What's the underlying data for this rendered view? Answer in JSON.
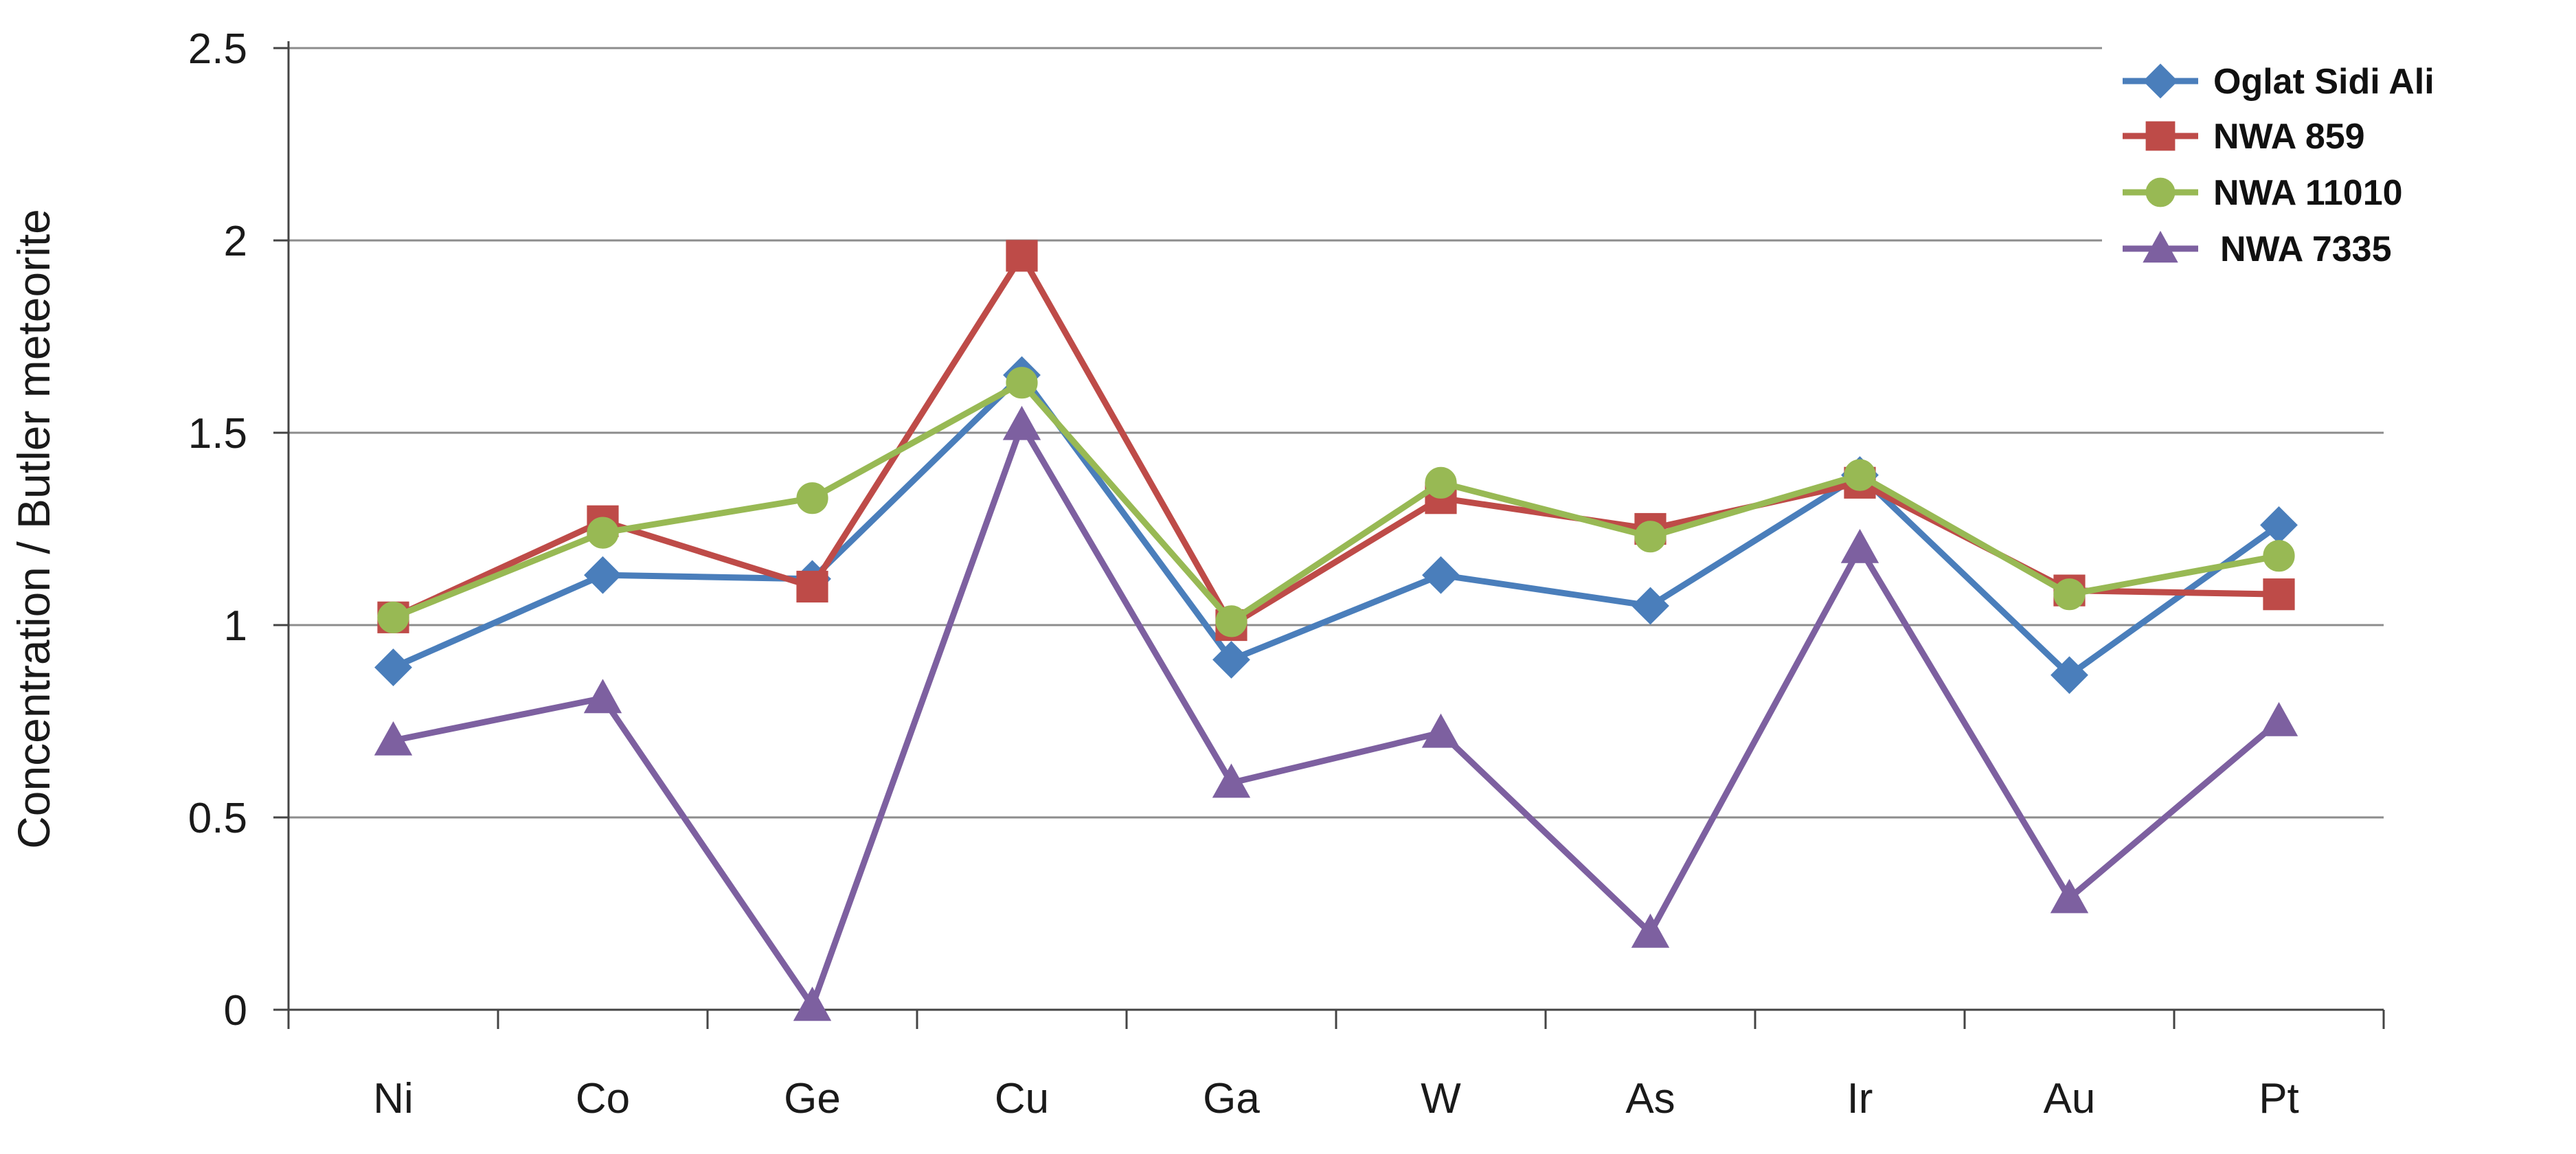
{
  "chart_data": {
    "type": "line",
    "title": "",
    "xlabel": "",
    "ylabel": "Concentration / Butler meteorite",
    "categories": [
      "Ni",
      "Co",
      "Ge",
      "Cu",
      "Ga",
      "W",
      "As",
      "Ir",
      "Au",
      "Pt"
    ],
    "ylim": [
      0,
      2.5
    ],
    "yticks": [
      "0",
      "0.5",
      "1",
      "1.5",
      "2",
      "2.5"
    ],
    "grid": true,
    "legend_position": "top-right",
    "series": [
      {
        "name": "Oglat Sidi Ali",
        "color": "#4a7ebb",
        "marker": "diamond",
        "values": [
          0.89,
          1.13,
          1.12,
          1.65,
          0.91,
          1.13,
          1.05,
          1.39,
          0.87,
          1.26
        ]
      },
      {
        "name": "NWA 859",
        "color": "#be4b48",
        "marker": "square",
        "values": [
          1.02,
          1.27,
          1.1,
          1.96,
          1.0,
          1.33,
          1.25,
          1.37,
          1.09,
          1.08
        ]
      },
      {
        "name": "NWA 11010",
        "color": "#98b954",
        "marker": "circle",
        "values": [
          1.02,
          1.24,
          1.33,
          1.63,
          1.01,
          1.37,
          1.23,
          1.39,
          1.08,
          1.18
        ]
      },
      {
        "name": "NWA 7335",
        "color": "#7d60a0",
        "marker": "triangle",
        "values": [
          0.7,
          0.81,
          0.01,
          1.52,
          0.59,
          0.72,
          0.2,
          1.2,
          0.29,
          0.75
        ]
      }
    ]
  }
}
